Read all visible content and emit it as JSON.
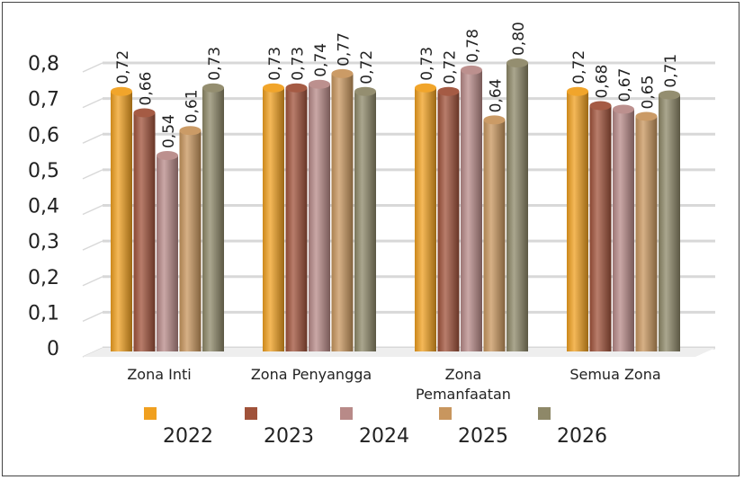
{
  "chart_data": {
    "type": "bar",
    "categories": [
      "Zona Inti",
      "Zona Penyangga",
      "Zona Pemanfaatan",
      "Semua Zona"
    ],
    "category_lines": [
      [
        "Zona Inti"
      ],
      [
        "Zona Penyangga"
      ],
      [
        "Zona",
        "Pemanfaatan"
      ],
      [
        "Semua Zona"
      ]
    ],
    "series": [
      {
        "name": "2022",
        "color": "#F0A020",
        "values": [
          0.72,
          0.73,
          0.73,
          0.72
        ],
        "labels": [
          "0,72",
          "0,73",
          "0,73",
          "0,72"
        ]
      },
      {
        "name": "2023",
        "color": "#A0523A",
        "values": [
          0.66,
          0.73,
          0.72,
          0.68
        ],
        "labels": [
          "0,66",
          "0,73",
          "0,72",
          "0,68"
        ]
      },
      {
        "name": "2024",
        "color": "#B88A88",
        "values": [
          0.54,
          0.74,
          0.78,
          0.67
        ],
        "labels": [
          "0,54",
          "0,74",
          "0,78",
          "0,67"
        ]
      },
      {
        "name": "2025",
        "color": "#C8965E",
        "values": [
          0.61,
          0.77,
          0.64,
          0.65
        ],
        "labels": [
          "0,61",
          "0,77",
          "0,64",
          "0,65"
        ]
      },
      {
        "name": "2026",
        "color": "#8E8868",
        "values": [
          0.73,
          0.72,
          0.8,
          0.71
        ],
        "labels": [
          "0,73",
          "0,72",
          "0,80",
          "0,71"
        ]
      }
    ],
    "yticks": [
      "0",
      "0,1",
      "0,2",
      "0,3",
      "0,4",
      "0,5",
      "0,6",
      "0,7",
      "0,8"
    ],
    "ylim": [
      0,
      0.8
    ],
    "grid": true,
    "legend_position": "bottom"
  }
}
